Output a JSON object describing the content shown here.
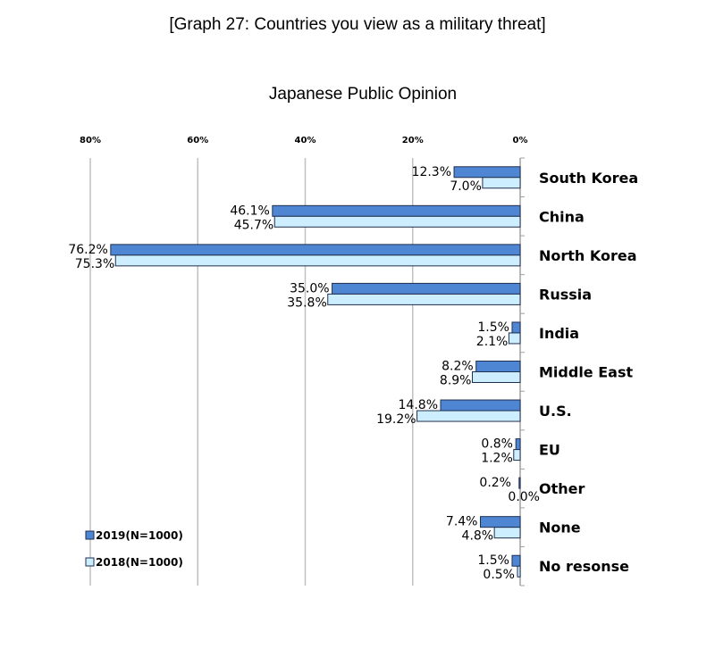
{
  "chart_data": {
    "type": "bar",
    "orientation": "horizontal-reversed",
    "title": "[Graph 27: Countries you view as a military threat]",
    "subtitle": "Japanese Public Opinion",
    "categories": [
      "South Korea",
      "China",
      "North Korea",
      "Russia",
      "India",
      "Middle East",
      "U.S.",
      "EU",
      "Other",
      "None",
      "No resonse"
    ],
    "series": [
      {
        "name": "2019(N=1000)",
        "color": "#4f86d4",
        "values": [
          12.3,
          46.1,
          76.2,
          35.0,
          1.5,
          8.2,
          14.8,
          0.8,
          0.2,
          7.4,
          1.5
        ],
        "labels": [
          "12.3%",
          "46.1%",
          "76.2%",
          "35.0%",
          "1.5%",
          "8.2%",
          "14.8%",
          "0.8%",
          "0.2%",
          "7.4%",
          "1.5%"
        ]
      },
      {
        "name": "2018(N=1000)",
        "color": "#cdeeff",
        "values": [
          7.0,
          45.7,
          75.3,
          35.8,
          2.1,
          8.9,
          19.2,
          1.2,
          0.0,
          4.8,
          0.5
        ],
        "labels": [
          "7.0%",
          "45.7%",
          "75.3%",
          "35.8%",
          "2.1%",
          "8.9%",
          "19.2%",
          "1.2%",
          "0.0%",
          "4.8%",
          "0.5%"
        ]
      }
    ],
    "xticks": [
      80,
      60,
      40,
      20,
      0
    ],
    "xtick_labels": [
      "80%",
      "60%",
      "40%",
      "20%",
      "0%"
    ],
    "xlim": [
      0,
      80
    ],
    "grid": true,
    "legend": "bottom-left"
  }
}
